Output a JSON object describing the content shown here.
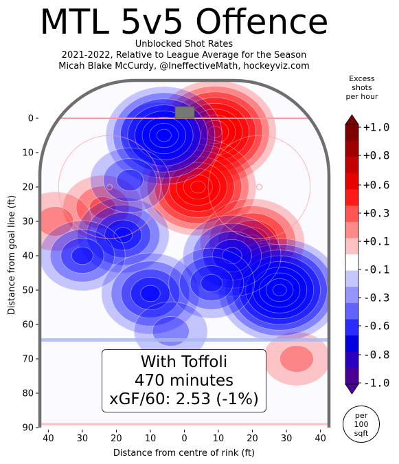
{
  "title": "MTL 5v5 Offence",
  "subtitle_lines": [
    "Unblocked Shot Rates",
    "2021-2022, Relative to League Average for the Season",
    "Micah Blake McCurdy, @IneffectiveMath, hockeyviz.com"
  ],
  "infobox_lines": [
    "With Toffoli",
    "470 minutes",
    "xGF/60: 2.53 (-1%)"
  ],
  "colorbar": {
    "title_lines": [
      "Excess",
      "shots",
      "per hour"
    ],
    "tick_labels": [
      "+1.0",
      "+0.8",
      "+0.6",
      "+0.3",
      "+0.1",
      "-0.1",
      "-0.3",
      "-0.6",
      "-0.8",
      "-1.0"
    ],
    "unit_lines": [
      "per",
      "100",
      "sqft"
    ]
  },
  "chart_data": {
    "type": "heatmap",
    "xlabel": "Distance from centre of rink (ft)",
    "ylabel": "Distance from goal line (ft)",
    "x_ticks": [
      "40",
      "30",
      "20",
      "10",
      "0",
      "10",
      "20",
      "30",
      "40"
    ],
    "y_ticks": [
      "0",
      "10",
      "20",
      "30",
      "40",
      "50",
      "60",
      "70",
      "80",
      "90"
    ],
    "xlim": [
      -42.5,
      42.5
    ],
    "ylim": [
      90,
      -11
    ],
    "colors": {
      "positive": "#ff0000",
      "negative": "#0000ff",
      "rink_outline": "#6e6e6e",
      "goal_line": "#ff9999",
      "blue_line": "#a9b6e8"
    },
    "hotspots": [
      {
        "x": 9,
        "y": 4,
        "value": 1.0
      },
      {
        "x": 4,
        "y": 20,
        "value": 0.9
      },
      {
        "x": 20,
        "y": 36,
        "value": 0.7
      },
      {
        "x": -24,
        "y": 26,
        "value": 0.3
      },
      {
        "x": 24,
        "y": 45,
        "value": 0.2
      },
      {
        "x": 33,
        "y": 70,
        "value": 0.1
      },
      {
        "x": -38,
        "y": 30,
        "value": 0.2
      },
      {
        "x": -8,
        "y": 4,
        "value": -0.2
      },
      {
        "x": -6,
        "y": 5,
        "value": -0.9
      },
      {
        "x": 28,
        "y": 50,
        "value": -1.0
      },
      {
        "x": 14,
        "y": 40,
        "value": -0.6
      },
      {
        "x": -18,
        "y": 34,
        "value": -0.5
      },
      {
        "x": -10,
        "y": 51,
        "value": -0.6
      },
      {
        "x": -30,
        "y": 40,
        "value": -0.4
      },
      {
        "x": -16,
        "y": 18,
        "value": -0.3
      },
      {
        "x": 8,
        "y": 48,
        "value": -0.4
      },
      {
        "x": -4,
        "y": 62,
        "value": -0.2
      }
    ]
  }
}
